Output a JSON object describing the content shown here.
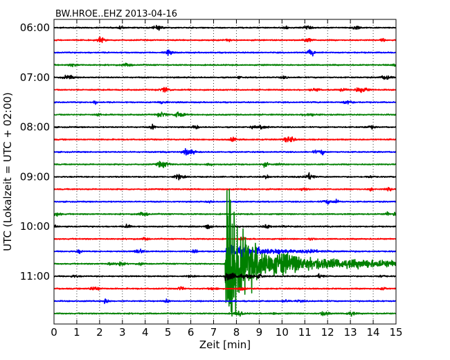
{
  "chart_data": {
    "type": "line",
    "title": "BW.HROE..EHZ 2013-04-16",
    "xlabel": "Zeit  [min]",
    "ylabel": "UTC (Lokalzeit = UTC + 02:00)",
    "xlim": [
      0,
      15
    ],
    "x_ticks": [
      "0",
      "1",
      "2",
      "3",
      "4",
      "5",
      "6",
      "7",
      "8",
      "9",
      "10",
      "11",
      "12",
      "13",
      "14",
      "15"
    ],
    "y_tick_labels": [
      "06:00",
      "07:00",
      "08:00",
      "09:00",
      "10:00",
      "11:00"
    ],
    "grid": "vertical dotted",
    "trace_colors": [
      "#000000",
      "#ff0000",
      "#0000ff",
      "#008000"
    ],
    "traces_per_hour": 4,
    "trace_start_times": [
      "06:00",
      "06:15",
      "06:30",
      "06:45",
      "07:00",
      "07:15",
      "07:30",
      "07:45",
      "08:00",
      "08:15",
      "08:30",
      "08:45",
      "09:00",
      "09:15",
      "09:30",
      "09:45",
      "10:00",
      "10:15",
      "10:30",
      "10:45",
      "11:00",
      "11:15",
      "11:30",
      "11:45"
    ],
    "event": {
      "trace_start": "10:45",
      "onset_min": 7.5,
      "peak_min": 7.7,
      "coda_end_min": 15
    }
  }
}
